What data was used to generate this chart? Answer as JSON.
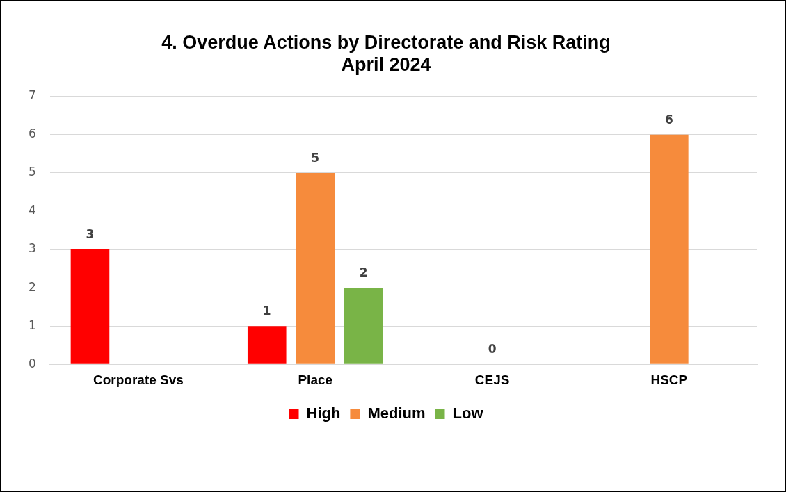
{
  "chart_data": {
    "type": "bar",
    "title": "4. Overdue Actions by Directorate and Risk Rating",
    "subtitle": "April 2024",
    "categories": [
      "Corporate Svs",
      "Place",
      "CEJS",
      "HSCP"
    ],
    "series": [
      {
        "name": "High",
        "color": "#ff0000",
        "values": [
          3,
          1,
          null,
          null
        ]
      },
      {
        "name": "Medium",
        "color": "#f68b3c",
        "values": [
          null,
          5,
          0,
          6
        ]
      },
      {
        "name": "Low",
        "color": "#79b447",
        "values": [
          null,
          2,
          null,
          null
        ]
      }
    ],
    "ylim": [
      0,
      7
    ],
    "yticks": [
      0,
      1,
      2,
      3,
      4,
      5,
      6,
      7
    ],
    "grid": "y",
    "legend": "bottom",
    "data_labels": true
  }
}
